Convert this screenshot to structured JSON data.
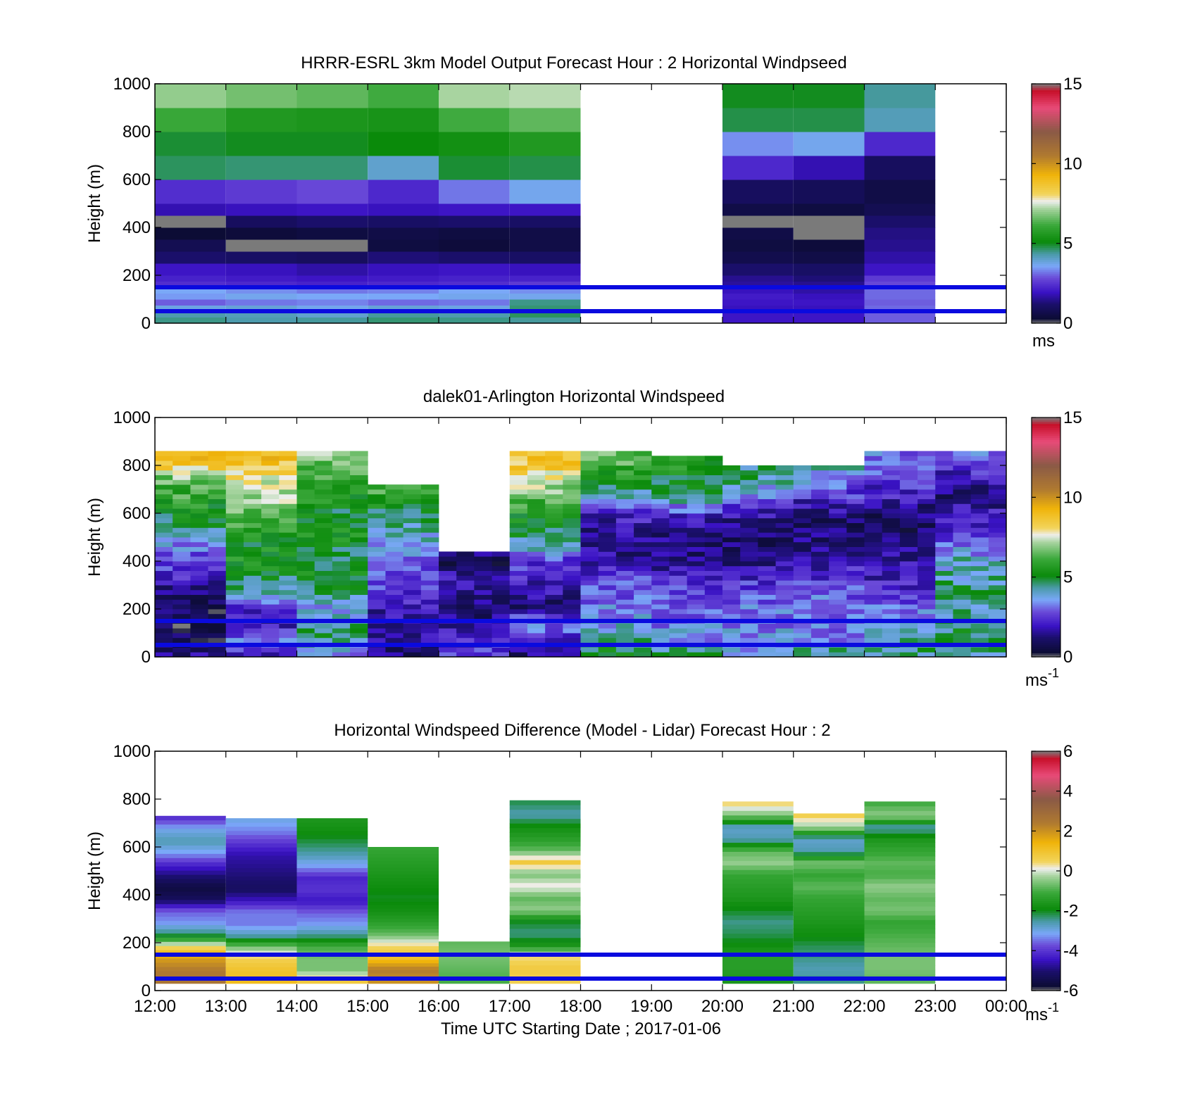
{
  "chart_data": [
    {
      "type": "heatmap",
      "title": "HRRR-ESRL 3km Model Output   Forecast Hour : 2 Horizontal Windpseed",
      "ylabel": "Height (m)",
      "ylim": [
        0,
        1000
      ],
      "yticks": [
        "0",
        "200",
        "400",
        "600",
        "800",
        "1000"
      ],
      "colorbar": {
        "ticks": [
          "0",
          "5",
          "10",
          "15"
        ],
        "range": [
          0,
          15
        ],
        "unit_base": "ms",
        "unit_sup": "",
        "scale": "speed"
      },
      "reference_lines_m": [
        50,
        150
      ],
      "reference_line_color": "#0a0adf",
      "x_hours": [
        0,
        1,
        2,
        3,
        4,
        5,
        6,
        7,
        8,
        9,
        10,
        11,
        12
      ],
      "heights_m": [
        0,
        25,
        50,
        75,
        100,
        125,
        150,
        175,
        200,
        250,
        300,
        350,
        400,
        450,
        500,
        600,
        700,
        800,
        900,
        1000
      ],
      "columns": [
        {
          "x0": 0,
          "x1": 1,
          "values": [
            4.5,
            4.3,
            3.8,
            3.0,
            3.5,
            3.6,
            2.4,
            2.2,
            2.0,
            1.2,
            0.8,
            0.3,
            0.0,
            1.8,
            2.4,
            4.7,
            4.9,
            6.1,
            7.0
          ]
        },
        {
          "x0": 1,
          "x1": 2,
          "values": [
            4.3,
            4.2,
            3.9,
            3.2,
            3.7,
            3.4,
            2.3,
            2.1,
            1.9,
            1.1,
            0.0,
            0.4,
            1.0,
            1.9,
            2.6,
            4.6,
            5.0,
            5.6,
            6.7
          ]
        },
        {
          "x0": 2,
          "x1": 3,
          "values": [
            4.4,
            4.0,
            3.7,
            3.3,
            3.6,
            3.2,
            2.2,
            2.0,
            1.7,
            1.0,
            0.0,
            0.5,
            1.2,
            2.0,
            2.8,
            4.6,
            5.0,
            5.5,
            6.5
          ]
        },
        {
          "x0": 3,
          "x1": 4,
          "values": [
            4.6,
            4.4,
            3.9,
            3.1,
            3.6,
            3.3,
            2.3,
            2.1,
            1.9,
            1.3,
            0.5,
            0.6,
            1.1,
            1.9,
            2.3,
            4.0,
            5.1,
            5.4,
            6.2
          ]
        },
        {
          "x0": 4,
          "x1": 5,
          "values": [
            4.5,
            4.3,
            3.8,
            3.2,
            3.7,
            3.6,
            2.4,
            2.2,
            2.0,
            1.2,
            0.4,
            0.5,
            1.2,
            2.0,
            3.2,
            4.9,
            5.3,
            6.2,
            7.2
          ]
        },
        {
          "x0": 5,
          "x1": 6,
          "values": [
            4.4,
            4.7,
            4.6,
            4.5,
            3.7,
            3.4,
            2.6,
            2.2,
            1.9,
            1.1,
            0.6,
            0.6,
            1.1,
            2.0,
            3.7,
            4.8,
            5.6,
            6.5,
            7.3
          ]
        },
        {
          "x0": 8,
          "x1": 9,
          "values": [
            2.0,
            2.0,
            1.9,
            2.0,
            2.1,
            1.9,
            1.6,
            1.5,
            1.2,
            0.7,
            0.5,
            0.6,
            0.0,
            0.6,
            1.0,
            2.3,
            3.4,
            4.8,
            5.0
          ]
        },
        {
          "x0": 9,
          "x1": 10,
          "values": [
            2.0,
            2.0,
            1.9,
            2.0,
            1.9,
            1.7,
            1.5,
            1.3,
            1.1,
            0.6,
            0.4,
            0.0,
            0.0,
            0.5,
            0.9,
            1.8,
            3.7,
            4.8,
            5.0
          ]
        },
        {
          "x0": 10,
          "x1": 11,
          "values": [
            3.0,
            3.0,
            3.1,
            3.0,
            3.1,
            3.1,
            2.8,
            2.6,
            2.0,
            1.7,
            1.5,
            1.4,
            1.2,
            0.8,
            0.6,
            1.0,
            2.3,
            4.2,
            4.4
          ]
        }
      ]
    },
    {
      "type": "heatmap",
      "title": "dalek01-Arlington  Horizontal Windspeed",
      "ylabel": "Height (m)",
      "ylim": [
        0,
        1000
      ],
      "yticks": [
        "0",
        "200",
        "400",
        "600",
        "800",
        "1000"
      ],
      "colorbar": {
        "ticks": [
          "0",
          "5",
          "10",
          "15"
        ],
        "range": [
          0,
          15
        ],
        "unit_base": "ms",
        "unit_sup": "-1",
        "scale": "speed"
      },
      "reference_lines_m": [
        50,
        150
      ],
      "reference_line_color": "#0a0adf",
      "x_hours": [
        0,
        1,
        2,
        3,
        4,
        5,
        6,
        7,
        8,
        9,
        10,
        11,
        12
      ],
      "columns_per_hour": 4,
      "range_gates_m": [
        0,
        20,
        40,
        60,
        80,
        100,
        120,
        140,
        160,
        180,
        200,
        220,
        240,
        260,
        280,
        300,
        320,
        340,
        360,
        380,
        400,
        420,
        440,
        460,
        480,
        500,
        520,
        540,
        560,
        580,
        600,
        620,
        640,
        660,
        680,
        700,
        720,
        740,
        760,
        780,
        800,
        820,
        840,
        860
      ],
      "profiles": [
        {
          "hour": 0.5,
          "top_m": 860,
          "speeds": [
            1.5,
            0.8,
            0.6,
            1.0,
            1.2,
            2.4,
            2.6,
            3.6,
            4.6,
            5.2,
            6.0,
            6.4,
            8.8,
            9.4
          ]
        },
        {
          "hour": 1.5,
          "top_m": 860,
          "speeds": [
            2.0,
            3.2,
            1.8,
            2.2,
            4.2,
            4.8,
            5.6,
            5.2,
            6.2,
            6.6,
            7.2,
            7.6,
            8.6,
            9.0
          ]
        },
        {
          "hour": 2.5,
          "top_m": 860,
          "speeds": [
            3.2,
            4.6,
            4.6,
            3.4,
            4.6,
            5.1,
            4.7,
            5.1,
            5.4,
            5.0,
            5.6,
            6.2,
            6.6,
            7.0
          ]
        },
        {
          "hour": 3.5,
          "top_m": 720,
          "speeds": [
            1.2,
            1.5,
            2.0,
            1.8,
            2.4,
            2.8,
            3.2,
            3.6,
            4.2,
            4.8,
            5.6,
            6.6
          ]
        },
        {
          "hour": 4.5,
          "top_m": 440,
          "speeds": [
            2.8,
            2.2,
            1.5,
            1.2,
            1.6,
            2.0,
            0.8,
            1.4
          ]
        },
        {
          "hour": 5.5,
          "top_m": 860,
          "speeds": [
            1.4,
            2.2,
            3.4,
            1.0,
            1.8,
            2.2,
            2.6,
            4.4,
            4.8,
            5.6,
            6.4,
            7.6,
            8.6,
            9.0
          ]
        },
        {
          "hour": 6.5,
          "top_m": 860,
          "speeds": [
            4.8,
            4.6,
            3.6,
            3.2,
            3.0,
            2.4,
            1.6,
            1.4,
            1.6,
            2.4,
            4.2,
            5.2,
            6.2,
            6.8
          ]
        },
        {
          "hour": 7.5,
          "top_m": 840,
          "speeds": [
            4.4,
            3.6,
            3.4,
            3.0,
            2.8,
            2.2,
            1.4,
            1.2,
            1.4,
            2.2,
            4.4,
            5.0,
            5.4,
            5.6
          ]
        },
        {
          "hour": 8.5,
          "top_m": 800,
          "speeds": [
            3.8,
            3.6,
            3.4,
            3.2,
            3.0,
            2.4,
            1.6,
            1.2,
            1.2,
            1.4,
            2.4,
            3.6,
            4.4,
            4.6
          ]
        },
        {
          "hour": 9.5,
          "top_m": 800,
          "speeds": [
            4.6,
            3.4,
            3.0,
            3.2,
            3.0,
            2.6,
            2.0,
            1.6,
            1.2,
            1.0,
            1.8,
            2.6,
            3.6,
            4.4
          ]
        },
        {
          "hour": 10.5,
          "top_m": 860,
          "speeds": [
            4.6,
            4.4,
            3.6,
            3.0,
            2.4,
            2.0,
            1.6,
            1.2,
            1.0,
            1.2,
            2.0,
            2.6,
            3.0,
            3.4
          ]
        },
        {
          "hour": 11.5,
          "top_m": 860,
          "speeds": [
            4.4,
            4.8,
            4.6,
            4.2,
            4.6,
            4.2,
            4.0,
            3.0,
            2.4,
            2.0,
            1.2,
            1.8,
            2.6,
            3.4
          ]
        }
      ]
    },
    {
      "type": "heatmap",
      "title": "Horizontal Windspeed Difference (Model - Lidar) Forecast Hour : 2",
      "xlabel": "Time UTC  Starting Date ; 2017-01-06",
      "ylabel": "Height (m)",
      "ylim": [
        0,
        1000
      ],
      "yticks": [
        "0",
        "200",
        "400",
        "600",
        "800",
        "1000"
      ],
      "xticks": [
        "12:00",
        "13:00",
        "14:00",
        "15:00",
        "16:00",
        "17:00",
        "18:00",
        "19:00",
        "20:00",
        "21:00",
        "22:00",
        "23:00",
        "00:00"
      ],
      "colorbar": {
        "ticks": [
          "-6",
          "-4",
          "-2",
          "0",
          "2",
          "4",
          "6"
        ],
        "range": [
          -6,
          6
        ],
        "unit_base": "ms",
        "unit_sup": "-1",
        "scale": "diff"
      },
      "reference_lines_m": [
        50,
        150
      ],
      "reference_line_color": "#0a0adf",
      "columns": [
        {
          "x0": 0,
          "x1": 1,
          "top_m": 730,
          "bottom_m": 30,
          "speeds": [
            2.6,
            2.4,
            1.8,
            0.4,
            -2.2,
            -3.2,
            -3.6,
            -5.2,
            -5.6,
            -5.0,
            -4.2,
            -3.2,
            -2.6,
            -3.0,
            -4.0
          ]
        },
        {
          "x0": 1,
          "x1": 2,
          "top_m": 720,
          "bottom_m": 30,
          "speeds": [
            1.2,
            1.0,
            0.6,
            -0.6,
            -2.6,
            -3.4,
            -3.4,
            -4.4,
            -5.2,
            -5.0,
            -4.8,
            -4.6,
            -4.0,
            -3.4,
            -3.0
          ]
        },
        {
          "x0": 2,
          "x1": 3,
          "top_m": 720,
          "bottom_m": 30,
          "speeds": [
            0.8,
            -0.6,
            -0.6,
            -1.0,
            -2.4,
            -3.2,
            -3.6,
            -4.4,
            -4.0,
            -4.2,
            -3.2,
            -2.6,
            -2.2,
            -1.8,
            -1.6
          ]
        },
        {
          "x0": 3,
          "x1": 4,
          "top_m": 600,
          "bottom_m": 30,
          "speeds": [
            2.0,
            2.4,
            1.0,
            0.4,
            -0.8,
            -1.4,
            -1.8,
            -2.0,
            -1.8,
            -1.6,
            -1.4,
            -1.2
          ]
        },
        {
          "x0": 4,
          "x1": 5,
          "top_m": 205,
          "bottom_m": 30,
          "speeds": [
            -1.0,
            -0.8,
            -0.6,
            -0.8
          ]
        },
        {
          "x0": 5,
          "x1": 6,
          "top_m": 795,
          "bottom_m": 30,
          "speeds": [
            0.6,
            0.8,
            0.4,
            -1.6,
            -2.4,
            -2.0,
            -0.4,
            -0.8,
            0.2,
            -0.6,
            0.8,
            -0.8,
            -1.4,
            -1.8,
            -2.6,
            -2.2
          ]
        },
        {
          "x0": 8,
          "x1": 9,
          "top_m": 790,
          "bottom_m": 30,
          "speeds": [
            -1.6,
            -1.4,
            -1.4,
            -1.8,
            -2.2,
            -2.4,
            -2.0,
            -1.6,
            -1.4,
            -1.2,
            -0.4,
            -0.8,
            -2.6,
            -2.8,
            -0.6,
            0.4
          ]
        },
        {
          "x0": 9,
          "x1": 10,
          "top_m": 740,
          "bottom_m": 30,
          "speeds": [
            -2.4,
            -2.6,
            -2.4,
            -2.2,
            -1.8,
            -1.6,
            -1.4,
            -1.2,
            -0.8,
            -1.2,
            -0.6,
            -2.6,
            -2.8,
            -0.4,
            0.6
          ]
        },
        {
          "x0": 10,
          "x1": 11,
          "top_m": 790,
          "bottom_m": 30,
          "speeds": [
            -0.8,
            -0.6,
            -0.6,
            -0.8,
            -1.0,
            -1.2,
            -0.6,
            -0.8,
            -0.4,
            -1.0,
            -0.8,
            -1.2,
            -1.6,
            -2.6,
            -0.4,
            -1.0
          ]
        }
      ]
    }
  ]
}
